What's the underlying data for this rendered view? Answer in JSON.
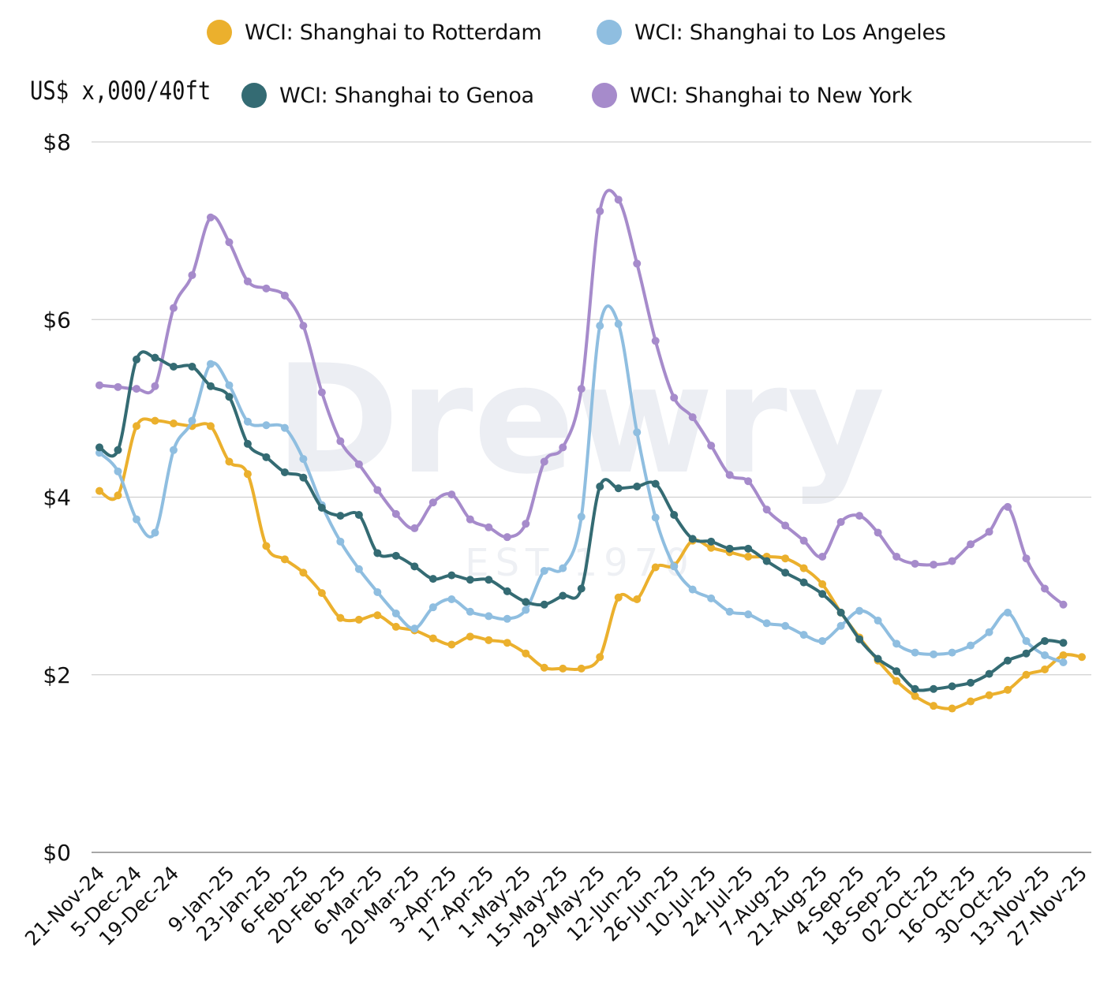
{
  "legend": {
    "items": [
      {
        "label": "WCI: Shanghai to Rotterdam",
        "color": "#EBB02D"
      },
      {
        "label": "WCI: Shanghai to Los Angeles",
        "color": "#8FBEE0"
      },
      {
        "label": "WCI: Shanghai to Genoa",
        "color": "#346B73"
      },
      {
        "label": "WCI: Shanghai to New York",
        "color": "#A68BCB"
      }
    ]
  },
  "unit_label": "US$ x,000/40ft",
  "watermark": {
    "brand": "Drewry",
    "tagline": "EST 1970"
  },
  "chart_data": {
    "type": "line",
    "ylabel": "US$ x,000/40ft",
    "ylim": [
      0,
      8
    ],
    "yticks": [
      0,
      2,
      4,
      6,
      8
    ],
    "ytick_labels": [
      "$0",
      "$2",
      "$4",
      "$6",
      "$8"
    ],
    "grid": true,
    "legend_position": "top",
    "x": [
      "21-Nov-24",
      "28-Nov-24",
      "5-Dec-24",
      "12-Dec-24",
      "19-Dec-24",
      "26-Dec-24",
      "2-Jan-25",
      "9-Jan-25",
      "16-Jan-25",
      "23-Jan-25",
      "30-Jan-25",
      "6-Feb-25",
      "13-Feb-25",
      "20-Feb-25",
      "27-Feb-25",
      "6-Mar-25",
      "13-Mar-25",
      "20-Mar-25",
      "27-Mar-25",
      "3-Apr-25",
      "10-Apr-25",
      "17-Apr-25",
      "24-Apr-25",
      "1-May-25",
      "8-May-25",
      "15-May-25",
      "22-May-25",
      "29-May-25",
      "5-Jun-25",
      "12-Jun-25",
      "19-Jun-25",
      "26-Jun-25",
      "3-Jul-25",
      "10-Jul-25",
      "17-Jul-25",
      "24-Jul-25",
      "31-Jul-25",
      "7-Aug-25",
      "14-Aug-25",
      "21-Aug-25",
      "28-Aug-25",
      "4-Sep-25",
      "11-Sep-25",
      "18-Sep-25",
      "25-Sep-25",
      "02-Oct-25",
      "09-Oct-25",
      "16-Oct-25",
      "23-Oct-25",
      "30-Oct-25",
      "06-Nov-25",
      "13-Nov-25",
      "20-Nov-25",
      "27-Nov-25"
    ],
    "x_tick_labels": [
      "21-Nov-24",
      "5-Dec-24",
      "19-Dec-24",
      "9-Jan-25",
      "23-Jan-25",
      "6-Feb-25",
      "20-Feb-25",
      "6-Mar-25",
      "20-Mar-25",
      "3-Apr-25",
      "17-Apr-25",
      "1-May-25",
      "15-May-25",
      "29-May-25",
      "12-Jun-25",
      "26-Jun-25",
      "10-Jul-25",
      "24-Jul-25",
      "7-Aug-25",
      "21-Aug-25",
      "4-Sep-25",
      "18-Sep-25",
      "02-Oct-25",
      "16-Oct-25",
      "30-Oct-25",
      "13-Nov-25",
      "27-Nov-25"
    ],
    "series": [
      {
        "name": "WCI: Shanghai to Rotterdam",
        "color": "#EBB02D",
        "values": [
          4.07,
          4.02,
          4.8,
          4.86,
          4.83,
          4.8,
          4.8,
          4.4,
          4.26,
          3.45,
          3.3,
          3.15,
          2.92,
          2.64,
          2.62,
          2.67,
          2.54,
          2.5,
          2.41,
          2.34,
          2.43,
          2.39,
          2.36,
          2.24,
          2.08,
          2.07,
          2.07,
          2.2,
          2.87,
          2.85,
          3.21,
          3.23,
          3.51,
          3.43,
          3.38,
          3.33,
          3.33,
          3.31,
          3.2,
          3.02,
          2.7,
          2.42,
          2.16,
          1.93,
          1.76,
          1.65,
          1.62,
          1.7,
          1.77,
          1.83,
          2.0,
          2.06,
          2.22,
          2.2
        ]
      },
      {
        "name": "WCI: Shanghai to Los Angeles",
        "color": "#8FBEE0",
        "values": [
          4.5,
          4.29,
          3.75,
          3.6,
          4.53,
          4.86,
          5.5,
          5.26,
          4.85,
          4.81,
          4.78,
          4.43,
          3.91,
          3.5,
          3.19,
          2.93,
          2.69,
          2.52,
          2.76,
          2.85,
          2.71,
          2.66,
          2.63,
          2.73,
          3.17,
          3.2,
          3.78,
          5.93,
          5.95,
          4.73,
          3.77,
          3.22,
          2.96,
          2.86,
          2.71,
          2.68,
          2.58,
          2.55,
          2.45,
          2.38,
          2.55,
          2.72,
          2.61,
          2.35,
          2.25,
          2.23,
          2.25,
          2.33,
          2.48,
          2.7,
          2.38,
          2.22,
          2.14,
          null
        ]
      },
      {
        "name": "WCI: Shanghai to Genoa",
        "color": "#346B73",
        "values": [
          4.56,
          4.53,
          5.55,
          5.57,
          5.47,
          5.47,
          5.25,
          5.13,
          4.6,
          4.45,
          4.28,
          4.22,
          3.88,
          3.79,
          3.8,
          3.37,
          3.34,
          3.22,
          3.08,
          3.12,
          3.07,
          3.07,
          2.94,
          2.82,
          2.79,
          2.89,
          2.97,
          4.12,
          4.1,
          4.12,
          4.15,
          3.8,
          3.53,
          3.5,
          3.42,
          3.42,
          3.28,
          3.15,
          3.04,
          2.91,
          2.7,
          2.4,
          2.18,
          2.04,
          1.84,
          1.84,
          1.87,
          1.91,
          2.01,
          2.16,
          2.24,
          2.38,
          2.36,
          null
        ]
      },
      {
        "name": "WCI: Shanghai to New York",
        "color": "#A68BCB",
        "values": [
          5.26,
          5.24,
          5.22,
          5.25,
          6.13,
          6.5,
          7.15,
          6.87,
          6.43,
          6.35,
          6.27,
          5.93,
          5.18,
          4.63,
          4.37,
          4.08,
          3.81,
          3.65,
          3.94,
          4.03,
          3.75,
          3.66,
          3.55,
          3.7,
          4.4,
          4.56,
          5.22,
          7.22,
          7.35,
          6.63,
          5.76,
          5.12,
          4.9,
          4.58,
          4.25,
          4.18,
          3.86,
          3.68,
          3.51,
          3.33,
          3.72,
          3.79,
          3.6,
          3.33,
          3.25,
          3.24,
          3.28,
          3.47,
          3.61,
          3.89,
          3.31,
          2.97,
          2.79,
          null
        ]
      }
    ]
  }
}
